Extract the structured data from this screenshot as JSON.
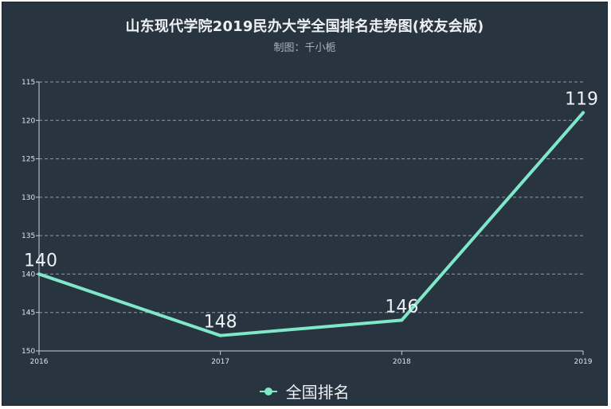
{
  "colors": {
    "background": "#293441",
    "series": "#7ee8c9",
    "grid": "#8e9aa6",
    "axis": "#c6ced6"
  },
  "chart_data": {
    "type": "line",
    "title": "山东现代学院2019民办大学全国排名走势图(校友会版)",
    "subtitle": "制图：千小栀",
    "xlabel": "",
    "ylabel": "",
    "x": [
      "2016",
      "2017",
      "2018",
      "2019"
    ],
    "y_ticks": [
      115,
      120,
      125,
      130,
      135,
      140,
      145,
      150
    ],
    "ylim": [
      115,
      150
    ],
    "y_inverted": true,
    "grid": true,
    "legend_position": "bottom",
    "series": [
      {
        "name": "全国排名",
        "values": [
          140,
          148,
          146,
          119
        ],
        "data_labels": [
          "140",
          "148",
          "146",
          "119"
        ]
      }
    ]
  }
}
